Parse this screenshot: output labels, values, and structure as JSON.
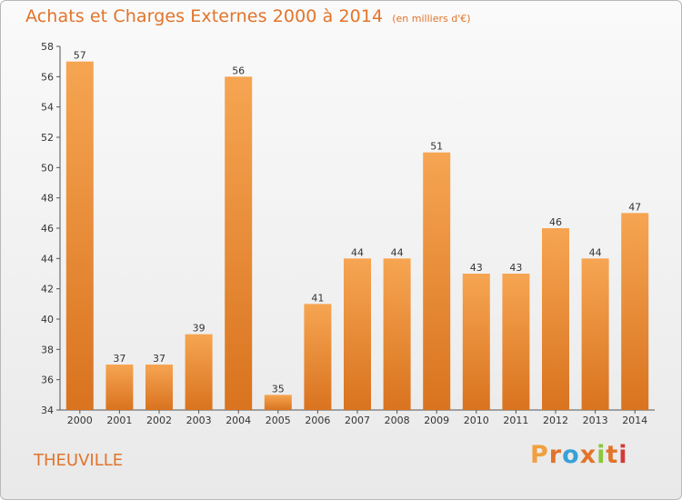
{
  "title": "Achats et Charges Externes 2000 à 2014",
  "unit": "(en milliers d'€)",
  "city": "THEUVILLE",
  "brand": "Proxiti",
  "colors": {
    "bar_top": "#f6a552",
    "bar_bottom": "#d9731f",
    "title": "#e2742a",
    "brand": [
      "#f0a040",
      "#e2742a",
      "#3aa0d8",
      "#e2742a",
      "#8cc63e",
      "#e2742a",
      "#d43a3a"
    ]
  },
  "chart_data": {
    "type": "bar",
    "categories": [
      "2000",
      "2001",
      "2002",
      "2003",
      "2004",
      "2005",
      "2006",
      "2007",
      "2008",
      "2009",
      "2010",
      "2011",
      "2012",
      "2013",
      "2014"
    ],
    "values": [
      57,
      37,
      37,
      39,
      56,
      35,
      41,
      44,
      44,
      51,
      43,
      43,
      46,
      44,
      47
    ],
    "ylim": [
      34,
      58
    ],
    "yticks": [
      34,
      36,
      38,
      40,
      42,
      44,
      46,
      48,
      50,
      52,
      54,
      56,
      58
    ],
    "grid": false,
    "legend": "none"
  }
}
